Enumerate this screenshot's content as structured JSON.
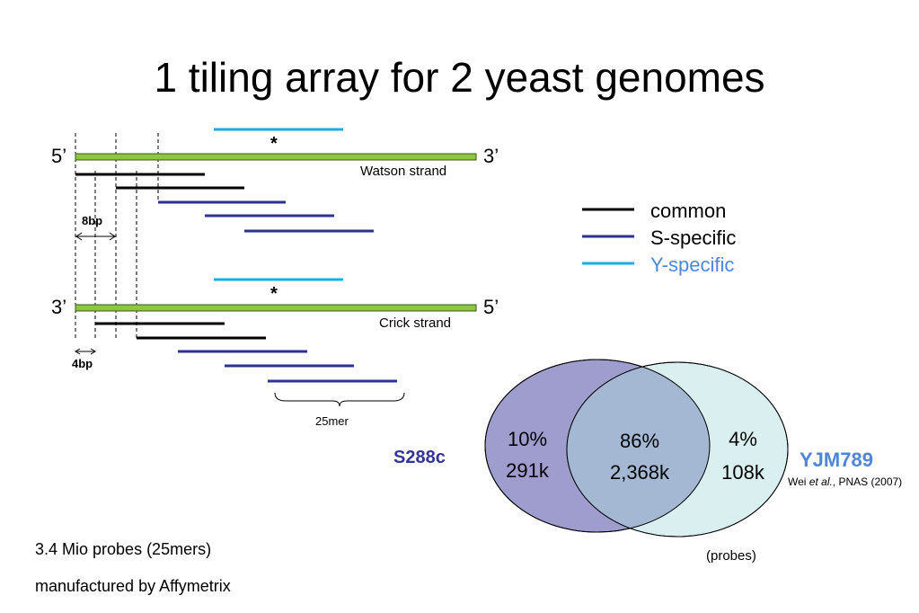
{
  "title": "1 tiling array for 2 yeast genomes",
  "watson": {
    "left_end": "5’",
    "right_end": "3’",
    "label": "Watson strand",
    "marker": "*"
  },
  "crick": {
    "left_end": "3’",
    "right_end": "5’",
    "label": "Crick strand",
    "marker": "*"
  },
  "spacing": {
    "watson_step": "8bp",
    "crick_step": "4bp",
    "probe_length": "25mer"
  },
  "legend": [
    {
      "key": "common",
      "label": "common",
      "color": "#000000",
      "text_color": "#000000"
    },
    {
      "key": "s_specific",
      "label": "S-specific",
      "color": "#2e3192",
      "text_color": "#000000"
    },
    {
      "key": "y_specific",
      "label": "Y-specific",
      "color": "#1aaee5",
      "text_color": "#4f86d9"
    }
  ],
  "colors": {
    "strand": "#8dc63f",
    "common": "#000000",
    "s_specific": "#2e3192",
    "y_specific": "#1aaee5",
    "venn_s": "#9e9dce",
    "venn_y": "#d9eff0",
    "venn_overlap": "#a4b8d4"
  },
  "venn": {
    "s_only": {
      "percent": "10%",
      "count": "291k"
    },
    "both": {
      "percent": "86%",
      "count": "2,368k"
    },
    "y_only": {
      "percent": "4%",
      "count": "108k"
    },
    "s_name": "S288c",
    "y_name": "YJM789",
    "citation": {
      "author": "Wei",
      "etal": "et al.",
      "rest": ", PNAS (2007)"
    },
    "unit": "(probes)"
  },
  "notes": {
    "line1": "3.4 Mio probes (25mers)",
    "line2": "manufactured by Affymetrix"
  }
}
